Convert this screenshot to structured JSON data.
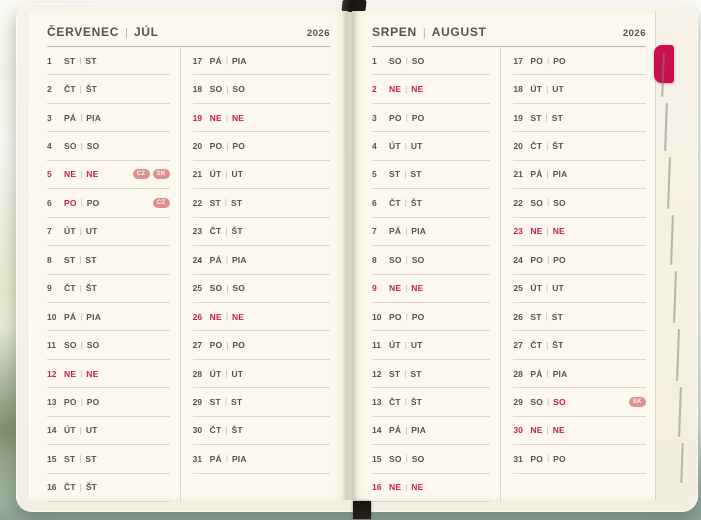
{
  "ui": {
    "separator": "|",
    "colors": {
      "paper": "#fdf8ed",
      "ink": "#57524a",
      "holiday_red": "#c41f4a",
      "row_line": "#ddd7c9",
      "header_line": "#bfb9ab",
      "badge": "#d8938c",
      "tab": "#ca0f50"
    },
    "badge_labels": {
      "cz": "CZ",
      "sk": "SK"
    }
  },
  "pages": [
    {
      "title": "ČERVENEC",
      "subtitle": "JÚL",
      "year": "2026",
      "columns": [
        [
          {
            "d": "1",
            "cz": "ST",
            "sk": "ST"
          },
          {
            "d": "2",
            "cz": "ČT",
            "sk": "ŠT"
          },
          {
            "d": "3",
            "cz": "PÁ",
            "sk": "PIA"
          },
          {
            "d": "4",
            "cz": "SO",
            "sk": "SO"
          },
          {
            "d": "5",
            "cz": "NE",
            "sk": "NE",
            "hl": "all",
            "badges": [
              "CZ",
              "SK"
            ]
          },
          {
            "d": "6",
            "cz": "PO",
            "sk": "PO",
            "hl": "a",
            "badges": [
              "CZ"
            ]
          },
          {
            "d": "7",
            "cz": "ÚT",
            "sk": "UT"
          },
          {
            "d": "8",
            "cz": "ST",
            "sk": "ST"
          },
          {
            "d": "9",
            "cz": "ČT",
            "sk": "ŠT"
          },
          {
            "d": "10",
            "cz": "PÁ",
            "sk": "PIA"
          },
          {
            "d": "11",
            "cz": "SO",
            "sk": "SO"
          },
          {
            "d": "12",
            "cz": "NE",
            "sk": "NE",
            "hl": "all"
          },
          {
            "d": "13",
            "cz": "PO",
            "sk": "PO"
          },
          {
            "d": "14",
            "cz": "ÚT",
            "sk": "UT"
          },
          {
            "d": "15",
            "cz": "ST",
            "sk": "ST"
          },
          {
            "d": "16",
            "cz": "ČT",
            "sk": "ŠT"
          }
        ],
        [
          {
            "d": "17",
            "cz": "PÁ",
            "sk": "PIA"
          },
          {
            "d": "18",
            "cz": "SO",
            "sk": "SO"
          },
          {
            "d": "19",
            "cz": "NE",
            "sk": "NE",
            "hl": "all"
          },
          {
            "d": "20",
            "cz": "PO",
            "sk": "PO"
          },
          {
            "d": "21",
            "cz": "ÚT",
            "sk": "UT"
          },
          {
            "d": "22",
            "cz": "ST",
            "sk": "ST"
          },
          {
            "d": "23",
            "cz": "ČT",
            "sk": "ŠT"
          },
          {
            "d": "24",
            "cz": "PÁ",
            "sk": "PIA"
          },
          {
            "d": "25",
            "cz": "SO",
            "sk": "SO"
          },
          {
            "d": "26",
            "cz": "NE",
            "sk": "NE",
            "hl": "all"
          },
          {
            "d": "27",
            "cz": "PO",
            "sk": "PO"
          },
          {
            "d": "28",
            "cz": "ÚT",
            "sk": "UT"
          },
          {
            "d": "29",
            "cz": "ST",
            "sk": "ST"
          },
          {
            "d": "30",
            "cz": "ČT",
            "sk": "ŠT"
          },
          {
            "d": "31",
            "cz": "PÁ",
            "sk": "PIA"
          }
        ]
      ]
    },
    {
      "title": "SRPEN",
      "subtitle": "AUGUST",
      "year": "2026",
      "columns": [
        [
          {
            "d": "1",
            "cz": "SO",
            "sk": "SO"
          },
          {
            "d": "2",
            "cz": "NE",
            "sk": "NE",
            "hl": "all"
          },
          {
            "d": "3",
            "cz": "PO",
            "sk": "PO"
          },
          {
            "d": "4",
            "cz": "ÚT",
            "sk": "UT"
          },
          {
            "d": "5",
            "cz": "ST",
            "sk": "ST"
          },
          {
            "d": "6",
            "cz": "ČT",
            "sk": "ŠT"
          },
          {
            "d": "7",
            "cz": "PÁ",
            "sk": "PIA"
          },
          {
            "d": "8",
            "cz": "SO",
            "sk": "SO"
          },
          {
            "d": "9",
            "cz": "NE",
            "sk": "NE",
            "hl": "all"
          },
          {
            "d": "10",
            "cz": "PO",
            "sk": "PO"
          },
          {
            "d": "11",
            "cz": "ÚT",
            "sk": "UT"
          },
          {
            "d": "12",
            "cz": "ST",
            "sk": "ST"
          },
          {
            "d": "13",
            "cz": "ČT",
            "sk": "ŠT"
          },
          {
            "d": "14",
            "cz": "PÁ",
            "sk": "PIA"
          },
          {
            "d": "15",
            "cz": "SO",
            "sk": "SO"
          },
          {
            "d": "16",
            "cz": "NE",
            "sk": "NE",
            "hl": "all"
          }
        ],
        [
          {
            "d": "17",
            "cz": "PO",
            "sk": "PO"
          },
          {
            "d": "18",
            "cz": "ÚT",
            "sk": "UT"
          },
          {
            "d": "19",
            "cz": "ST",
            "sk": "ST"
          },
          {
            "d": "20",
            "cz": "ČT",
            "sk": "ŠT"
          },
          {
            "d": "21",
            "cz": "PÁ",
            "sk": "PIA"
          },
          {
            "d": "22",
            "cz": "SO",
            "sk": "SO"
          },
          {
            "d": "23",
            "cz": "NE",
            "sk": "NE",
            "hl": "all"
          },
          {
            "d": "24",
            "cz": "PO",
            "sk": "PO"
          },
          {
            "d": "25",
            "cz": "ÚT",
            "sk": "UT"
          },
          {
            "d": "26",
            "cz": "ST",
            "sk": "ST"
          },
          {
            "d": "27",
            "cz": "ČT",
            "sk": "ŠT"
          },
          {
            "d": "28",
            "cz": "PÁ",
            "sk": "PIA"
          },
          {
            "d": "29",
            "cz": "SO",
            "sk": "SO",
            "hl": "b",
            "badges": [
              "SK"
            ]
          },
          {
            "d": "30",
            "cz": "NE",
            "sk": "NE",
            "hl": "all"
          },
          {
            "d": "31",
            "cz": "PO",
            "sk": "PO"
          }
        ]
      ]
    }
  ]
}
